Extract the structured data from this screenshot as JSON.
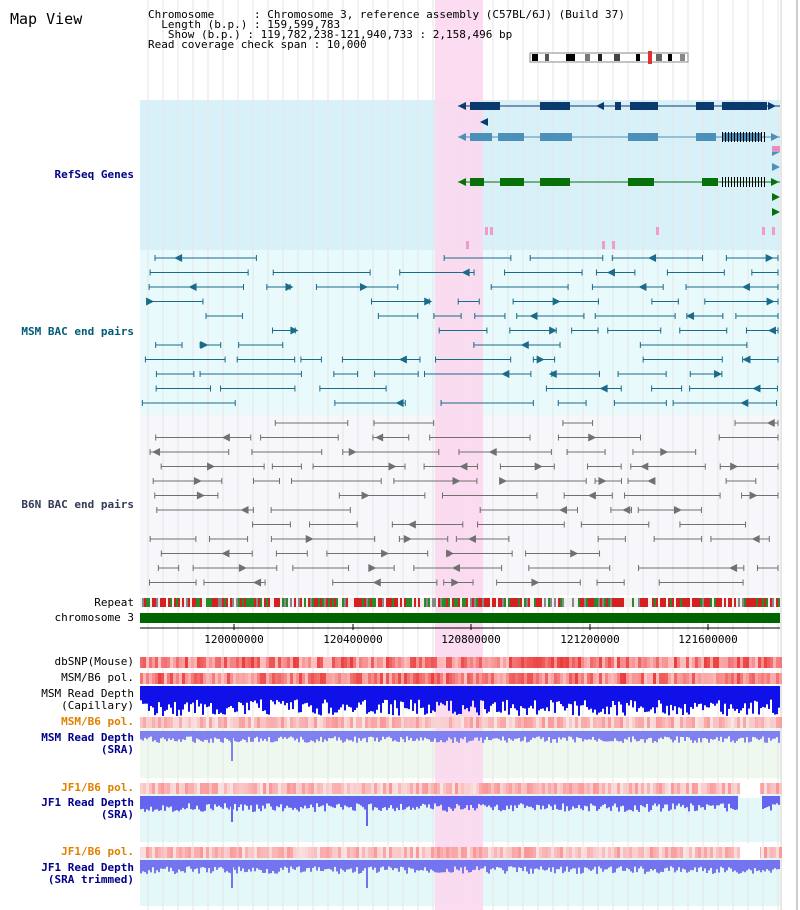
{
  "view_title": "Map View",
  "info": {
    "chromosome_label": "Chromosome",
    "chromosome_value": "Chromosome 3, reference assembly (C57BL/6J) (Build 37)",
    "length_label": "Length (b.p.)",
    "length_value": "159,599,783",
    "show_label": "Show (b.p.)",
    "show_value": "119,782,238-121,940,733 : 2,158,496 bp",
    "coverage_label": "Read coverage check span",
    "coverage_value": "10,000"
  },
  "tracks": {
    "refseq_genes": "RefSeq Genes",
    "msm_bac": "MSM BAC end pairs",
    "b6n_bac": "B6N BAC end pairs",
    "repeat": "Repeat",
    "chromosome": "chromosome 3",
    "dbsnp": "dbSNP(Mouse)",
    "msm_b6_pol_1": "MSM/B6 pol.",
    "msm_read_depth_cap_1": "MSM Read Depth",
    "msm_read_depth_cap_2": "(Capillary)",
    "msm_b6_pol_2": "MSM/B6 pol.",
    "msm_read_depth_sra_1": "MSM Read Depth",
    "msm_read_depth_sra_2": "(SRA)",
    "jf1_b6_pol_1": "JF1/B6 pol.",
    "jf1_read_depth_sra_1": "JF1 Read Depth",
    "jf1_read_depth_sra_2": "(SRA)",
    "jf1_b6_pol_2": "JF1/B6 pol.",
    "jf1_read_depth_trim_1": "JF1 Read Depth",
    "jf1_read_depth_trim_2": "(SRA trimmed)"
  },
  "axis": {
    "ticks": [
      "120000000",
      "120400000",
      "120800000",
      "121200000",
      "121600000"
    ]
  },
  "colors": {
    "refseq_bg": "#d8f0f8",
    "msm_bac_bg": "#e8fafc",
    "b6n_bac_bg": "#f6f6fb",
    "highlight": "#fbd8ee",
    "gene_dark": "#0a3a6e",
    "gene_mid": "#4a90b8",
    "gene_green": "#087008",
    "chromosome_bar": "#006400"
  }
}
